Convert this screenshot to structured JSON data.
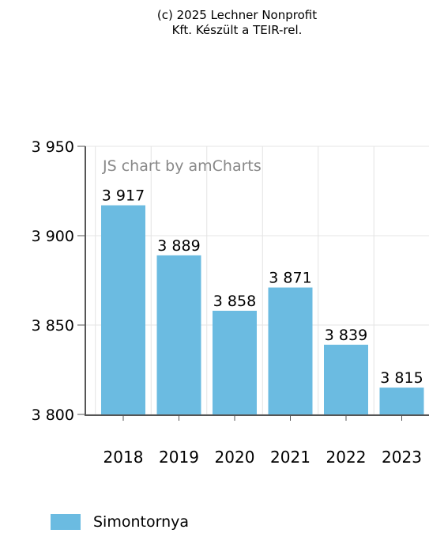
{
  "credit": {
    "line1": "(c) 2025 Lechner Nonprofit",
    "line2": "Kft. Készült a TEIR-rel."
  },
  "watermark": "JS chart by amCharts",
  "colors": {
    "bar": "#6bbbe1",
    "axis": "#555555",
    "grid": "#e4e4e4"
  },
  "chart_data": {
    "type": "bar",
    "categories": [
      "2018",
      "2019",
      "2020",
      "2021",
      "2022",
      "2023"
    ],
    "series": [
      {
        "name": "Simontornya",
        "values": [
          3917,
          3889,
          3858,
          3871,
          3839,
          3815
        ]
      }
    ],
    "value_labels": [
      "3 917",
      "3 889",
      "3 858",
      "3 871",
      "3 839",
      "3 815"
    ],
    "ylim": [
      3800,
      3950
    ],
    "yticks": [
      3800,
      3850,
      3900,
      3950
    ],
    "ytick_labels": [
      "3 800",
      "3 850",
      "3 900",
      "3 950"
    ],
    "grid": true,
    "legend_position": "bottom-left"
  },
  "legend": {
    "items": [
      {
        "label": "Simontornya"
      }
    ]
  }
}
